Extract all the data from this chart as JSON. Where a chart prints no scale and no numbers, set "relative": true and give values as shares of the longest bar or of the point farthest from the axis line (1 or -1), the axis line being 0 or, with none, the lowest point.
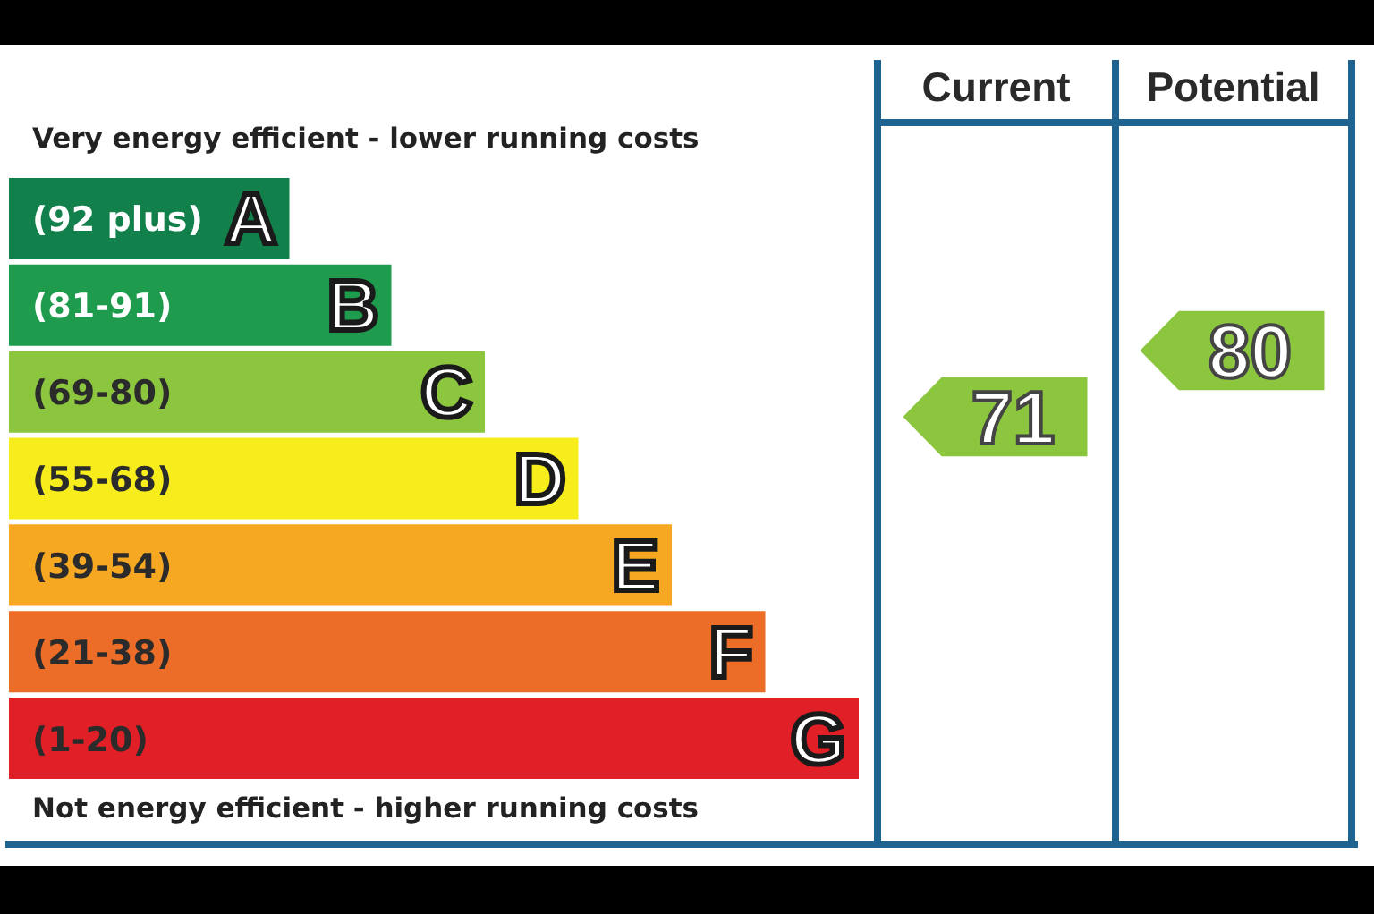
{
  "chart_data": [
    {
      "type": "bar",
      "orientation": "horizontal",
      "relative": true,
      "title": "Very energy efficient - lower running costs",
      "categories": [
        "A",
        "B",
        "C",
        "D",
        "E",
        "F",
        "G"
      ],
      "values": [
        0.33,
        0.45,
        0.56,
        0.67,
        0.78,
        0.89,
        1
      ],
      "colors": [
        "#12804a",
        "#1e9b4c",
        "#8cc63e",
        "#f7ec1c",
        "#f6a823",
        "#ec6d27",
        "#e01f26"
      ],
      "annotations": [
        "(92 plus)",
        "(81-91)",
        "(69-80)",
        "(55-68)",
        "(39-54)",
        "(21-38)",
        "(1-20)",
        "Not energy efficient - higher running costs"
      ]
    },
    {
      "type": "other",
      "categories": [
        "Current",
        "Potential"
      ],
      "values": [
        71,
        80
      ],
      "colors": [
        "#8cc63f",
        "#8cc63f"
      ],
      "data_labels": true
    }
  ]
}
